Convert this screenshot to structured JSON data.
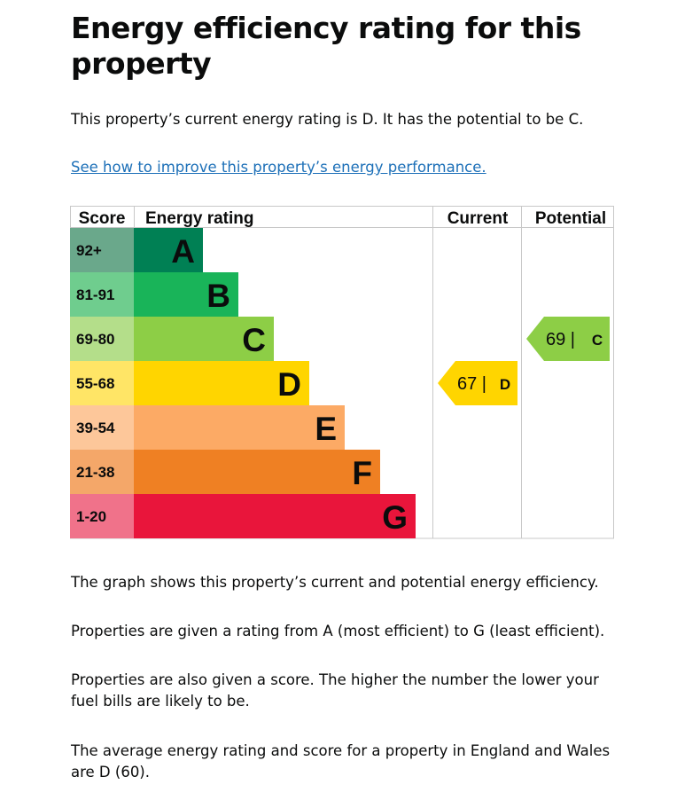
{
  "page": {
    "title": "Energy efficiency rating for this property",
    "summary": "This property’s current energy rating is D. It has the potential to be C.",
    "improve_link": "See how to improve this property’s energy performance.",
    "paragraphs": [
      "The graph shows this property’s current and potential energy efficiency.",
      "Properties are given a rating from A (most efficient) to G (least efficient).",
      "Properties are also given a score. The higher the number the lower your fuel bills are likely to be.",
      "The average energy rating and score for a property in England and Wales are D (60)."
    ]
  },
  "chart_data": {
    "type": "bar",
    "headers": {
      "score": "Score",
      "rating": "Energy rating",
      "current": "Current",
      "potential": "Potential"
    },
    "bands": [
      {
        "score": "92+",
        "letter": "A",
        "color": "#008054",
        "score_color": "#6aa88b"
      },
      {
        "score": "81-91",
        "letter": "B",
        "color": "#19b459",
        "score_color": "#6fcd8e"
      },
      {
        "score": "69-80",
        "letter": "C",
        "color": "#8dce46",
        "score_color": "#b4de8a"
      },
      {
        "score": "55-68",
        "letter": "D",
        "color": "#ffd500",
        "score_color": "#ffe566"
      },
      {
        "score": "39-54",
        "letter": "E",
        "color": "#fcaa65",
        "score_color": "#fdc79a"
      },
      {
        "score": "21-38",
        "letter": "F",
        "color": "#ef8023",
        "score_color": "#f4a769"
      },
      {
        "score": "1-20",
        "letter": "G",
        "color": "#e9153b",
        "score_color": "#f0728a"
      }
    ],
    "current": {
      "score": 67,
      "letter": "D",
      "label": "67 |",
      "color": "#ffd500"
    },
    "potential": {
      "score": 69,
      "letter": "C",
      "label": "69 |",
      "color": "#8dce46"
    }
  }
}
